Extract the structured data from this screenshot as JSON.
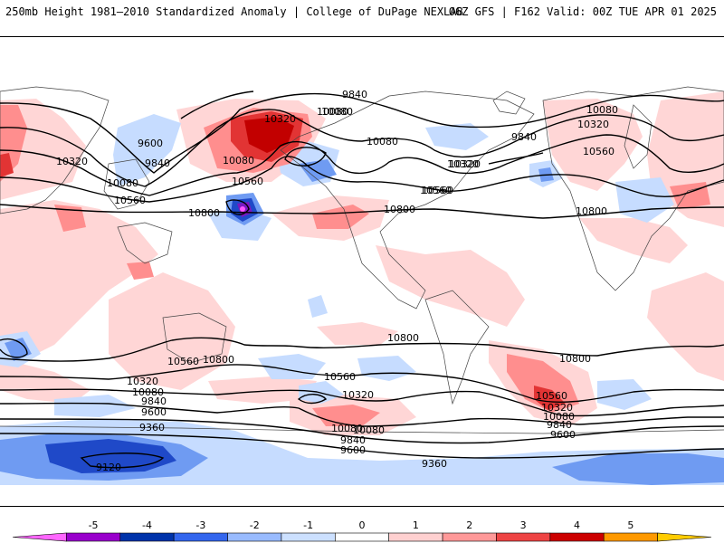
{
  "header": {
    "left": "250mb Height 1981–2010 Standardized Anomaly | College of DuPage NEXLAB",
    "right": "06Z GFS | F162 Valid: 00Z TUE APR 01 2025"
  },
  "contour_labels": [
    "9840",
    "10080",
    "10320",
    "10080",
    "9840",
    "10080",
    "10320",
    "10560",
    "10800",
    "10560",
    "9600",
    "10320",
    "9840",
    "10080",
    "10560",
    "10320",
    "10080",
    "10560",
    "10800",
    "10800",
    "10560",
    "10800",
    "10320",
    "10080",
    "9840",
    "9600",
    "9360",
    "9120",
    "10560",
    "10320",
    "10080",
    "10800",
    "10080",
    "9840",
    "9600",
    "10800",
    "10560",
    "10320",
    "10080",
    "9840",
    "9600",
    "9360",
    "10320",
    "10080",
    "10560"
  ],
  "colorbar": {
    "tick_labels": [
      "-5",
      "-4",
      "-3",
      "-2",
      "-1",
      "0",
      "1",
      "2",
      "3",
      "4",
      "5"
    ],
    "colors": [
      "#ff66ff",
      "#9900cc",
      "#0033aa",
      "#3366ee",
      "#99bbff",
      "#cce0ff",
      "#ffffff",
      "#ffd0d0",
      "#ff9999",
      "#ee4444",
      "#cc0000",
      "#ff9900",
      "#ffcc00"
    ]
  },
  "anomaly_colors": {
    "neg1": "#c6dcff",
    "neg2": "#6f9bf2",
    "neg3": "#1f49c8",
    "neg4": "#7a18c0",
    "neg5": "#ff55ff",
    "pos1": "#ffd6d6",
    "pos2": "#ff8e8e",
    "pos3": "#e23434",
    "pos4": "#c20000"
  }
}
